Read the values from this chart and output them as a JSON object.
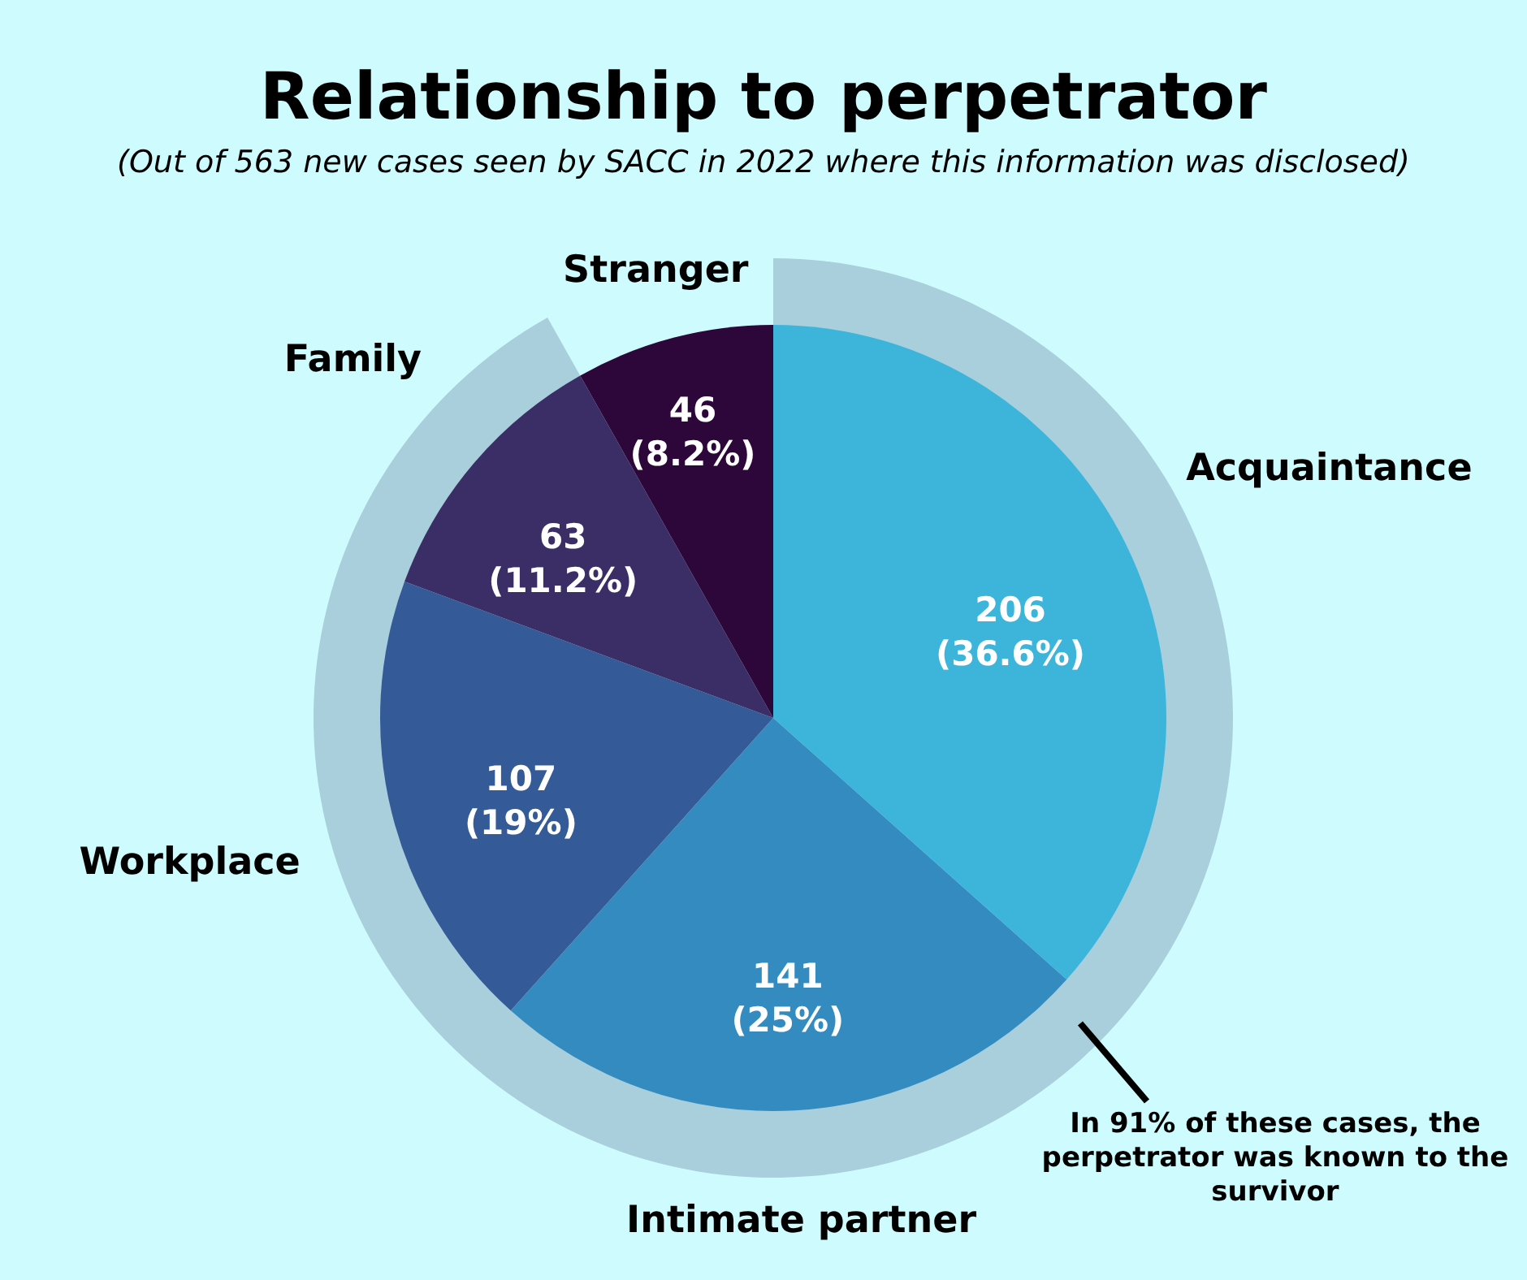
{
  "chart_data": {
    "type": "pie",
    "title": "Relationship to perpetrator",
    "subtitle": "(Out of 563 new cases seen by SACC in 2022 where this information was disclosed)",
    "categories": [
      "Acquaintance",
      "Intimate partner",
      "Workplace",
      "Family",
      "Stranger"
    ],
    "values": [
      206,
      141,
      107,
      63,
      46
    ],
    "colors": [
      "#3db5da",
      "#338bc0",
      "#345a98",
      "#3b2e66",
      "#2d0739"
    ],
    "value_labels": [
      "206 (36.6%)",
      "141 (25%)",
      "107 (19%)",
      "63 (11.2%)",
      "46 (8.2%)"
    ],
    "annotations": [
      "In 91% of these cases, the perpetrator was known to the survivor"
    ]
  }
}
